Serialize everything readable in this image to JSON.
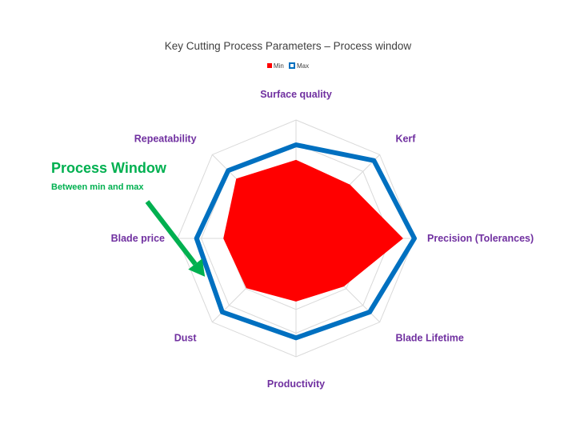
{
  "chart_data": {
    "type": "radar",
    "title": "Key Cutting Process Parameters – Process window",
    "categories": [
      "Surface quality",
      "Kerf",
      "Precision (Tolerances)",
      "Blade Lifetime",
      "Productivity",
      "Dust",
      "Blade price",
      "Repeatability"
    ],
    "series": [
      {
        "name": "Min",
        "values": [
          6.6,
          6.4,
          9.0,
          5.7,
          5.3,
          5.9,
          6.1,
          7.1
        ],
        "color": "#ff0000",
        "style": "filled"
      },
      {
        "name": "Max",
        "values": [
          7.9,
          9.3,
          10.0,
          8.8,
          8.4,
          8.8,
          8.4,
          8.1
        ],
        "color": "#0070c0",
        "style": "outline"
      }
    ],
    "rlim": [
      0,
      10
    ],
    "grid": true,
    "legend_position": "top"
  },
  "annotation": {
    "title": "Process Window",
    "subtitle": "Between min and max",
    "color": "#00b050"
  }
}
